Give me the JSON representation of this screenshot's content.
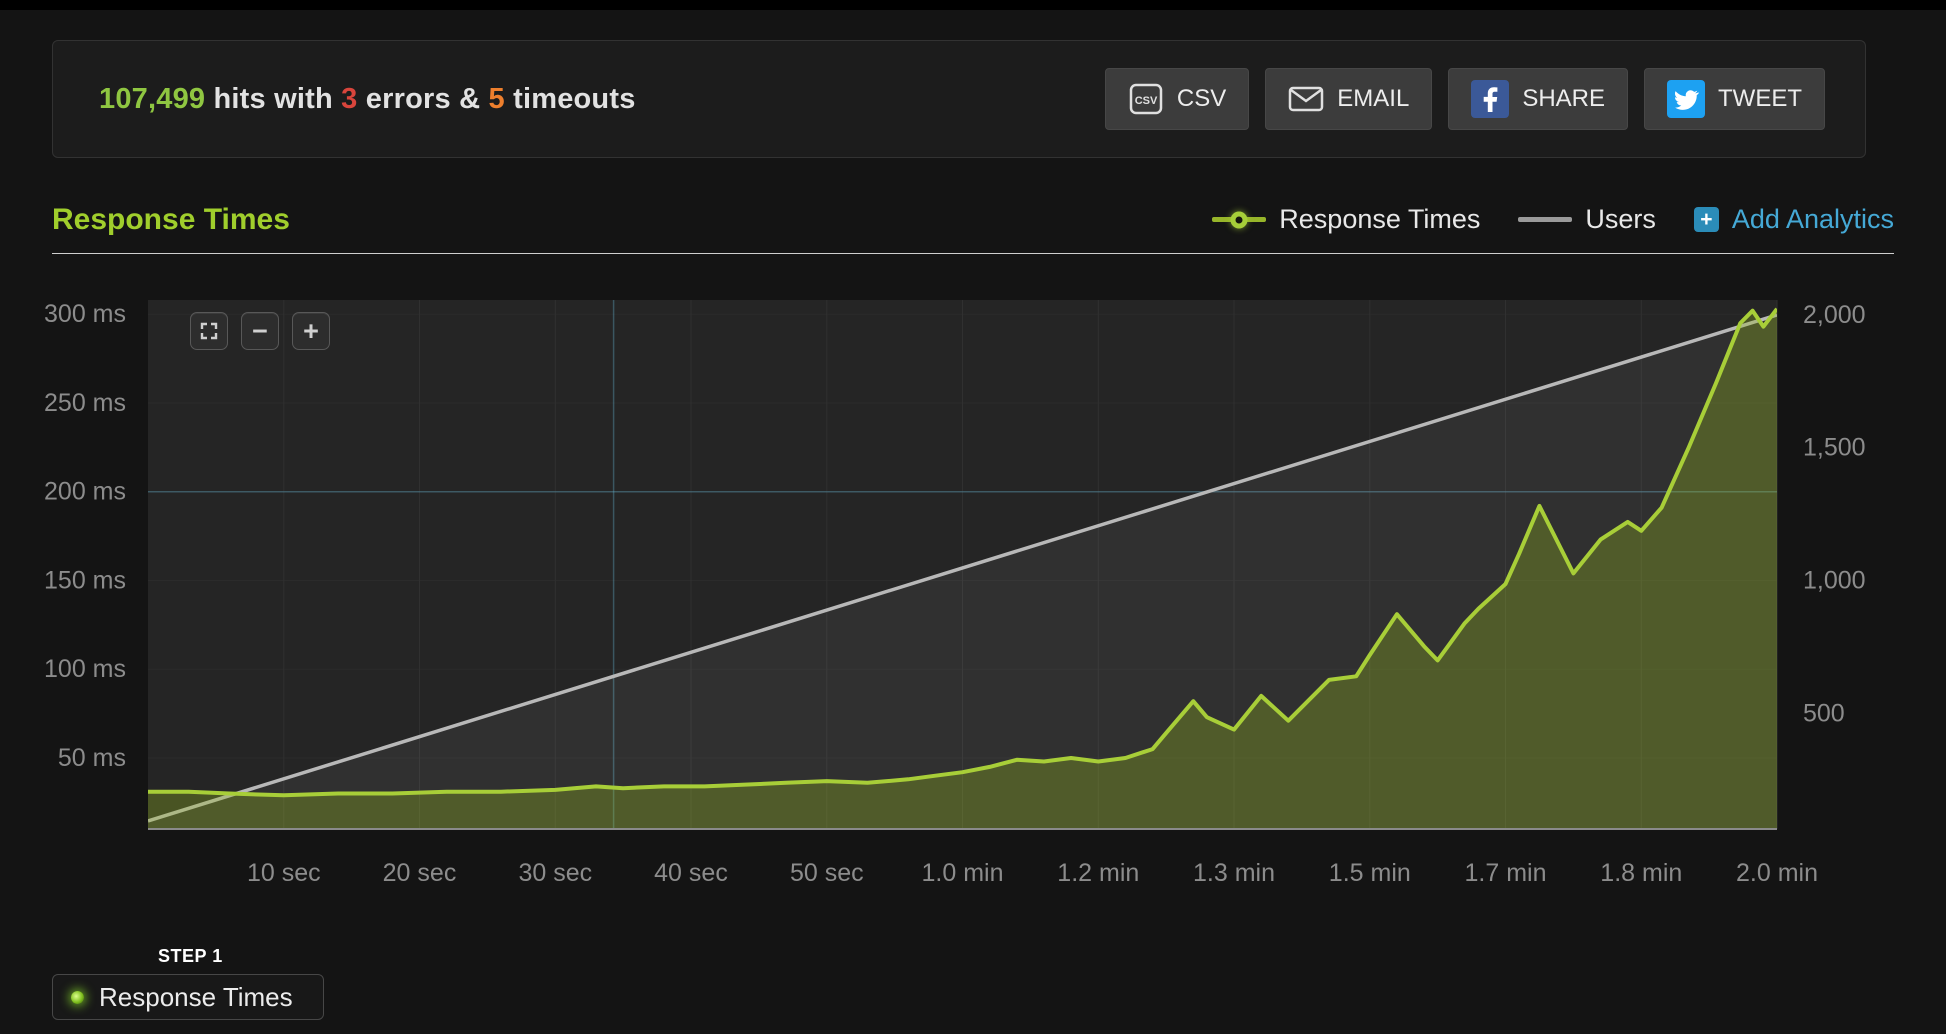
{
  "summary": {
    "hits": "107,499",
    "hits_suffix": "hits with",
    "errors": "3",
    "errors_suffix": "errors &",
    "timeouts": "5",
    "timeouts_suffix": "timeouts",
    "colors": {
      "hits": "#8fc641",
      "errors": "#d9453c",
      "timeouts": "#ee7f2d"
    },
    "buttons": [
      {
        "label": "CSV"
      },
      {
        "label": "EMAIL"
      },
      {
        "label": "SHARE"
      },
      {
        "label": "TWEET"
      }
    ]
  },
  "section": {
    "title": "Response Times",
    "title_color": "#a0ce2c",
    "legend": [
      {
        "label": "Response Times",
        "color": "#a6ce39"
      },
      {
        "label": "Users",
        "color": "#9a9a9a"
      }
    ],
    "add_analytics_label": "Add Analytics",
    "add_analytics_color": "#45a9d6"
  },
  "zoom_controls": {
    "zoom_out": "−",
    "zoom_in": "+"
  },
  "chart_data": {
    "type": "line",
    "title": "Response Times",
    "x_range": [
      0,
      120
    ],
    "x_ticks": [
      [
        10,
        "10 sec"
      ],
      [
        20,
        "20 sec"
      ],
      [
        30,
        "30 sec"
      ],
      [
        40,
        "40 sec"
      ],
      [
        50,
        "50 sec"
      ],
      [
        60,
        "1.0 min"
      ],
      [
        70,
        "1.2 min"
      ],
      [
        80,
        "1.3 min"
      ],
      [
        90,
        "1.5 min"
      ],
      [
        100,
        "1.7 min"
      ],
      [
        110,
        "1.8 min"
      ],
      [
        120,
        "2.0 min"
      ]
    ],
    "y_left": {
      "title": "response time (ms)",
      "ticks": [
        [
          300,
          "300 ms"
        ],
        [
          250,
          "250 ms"
        ],
        [
          200,
          "200 ms"
        ],
        [
          150,
          "150 ms"
        ],
        [
          100,
          "100 ms"
        ],
        [
          50,
          "50 ms"
        ]
      ],
      "range": [
        10,
        308
      ]
    },
    "y_right": {
      "title": "users",
      "ticks": [
        [
          2000,
          "2,000"
        ],
        [
          1500,
          "1,500"
        ],
        [
          1000,
          "1,000"
        ],
        [
          500,
          "500"
        ]
      ],
      "range": [
        65,
        2056
      ]
    },
    "series": [
      {
        "name": "Users",
        "axis": "right",
        "color": "#b8b8b8",
        "fill": "rgba(255,255,255,0.055)",
        "points": [
          [
            0,
            95
          ],
          [
            120,
            2000
          ]
        ]
      },
      {
        "name": "Response Times",
        "axis": "left",
        "color": "#a8ce38",
        "fill": "rgba(150,185,30,0.32)",
        "points": [
          [
            0,
            31
          ],
          [
            3,
            31
          ],
          [
            6,
            30
          ],
          [
            10,
            29
          ],
          [
            14,
            30
          ],
          [
            18,
            30
          ],
          [
            22,
            31
          ],
          [
            26,
            31
          ],
          [
            30,
            32
          ],
          [
            33,
            34
          ],
          [
            35,
            33
          ],
          [
            38,
            34
          ],
          [
            41,
            34
          ],
          [
            44,
            35
          ],
          [
            47,
            36
          ],
          [
            50,
            37
          ],
          [
            53,
            36
          ],
          [
            56,
            38
          ],
          [
            58,
            40
          ],
          [
            60,
            42
          ],
          [
            62,
            45
          ],
          [
            64,
            49
          ],
          [
            66,
            48
          ],
          [
            68,
            50
          ],
          [
            70,
            48
          ],
          [
            72,
            50
          ],
          [
            74,
            55
          ],
          [
            75,
            64
          ],
          [
            77,
            82
          ],
          [
            78,
            73
          ],
          [
            80,
            66
          ],
          [
            82,
            85
          ],
          [
            84,
            71
          ],
          [
            87,
            94
          ],
          [
            89,
            96
          ],
          [
            90,
            108
          ],
          [
            92,
            131
          ],
          [
            94,
            113
          ],
          [
            95,
            105
          ],
          [
            97,
            126
          ],
          [
            98,
            134
          ],
          [
            100,
            148
          ],
          [
            101,
            165
          ],
          [
            102.5,
            192
          ],
          [
            105,
            154
          ],
          [
            107,
            173
          ],
          [
            109,
            183
          ],
          [
            110,
            178
          ],
          [
            111.5,
            191
          ],
          [
            113.5,
            225
          ],
          [
            115.5,
            261
          ],
          [
            117.3,
            295
          ],
          [
            118.2,
            302
          ],
          [
            119,
            293
          ],
          [
            120,
            303
          ]
        ]
      }
    ],
    "guides": {
      "t": 34.3,
      "ms": 200,
      "color": "rgba(100,180,210,0.35)"
    },
    "grid": {
      "plot_bg": "#252525",
      "vertical": "#303030",
      "horizontal": "#2b2b2b",
      "axis_line": "#8a8a8a",
      "label_color": "#8c8c8c"
    }
  },
  "step_panel": {
    "step_label": "STEP 1",
    "series_label": "Response Times"
  }
}
